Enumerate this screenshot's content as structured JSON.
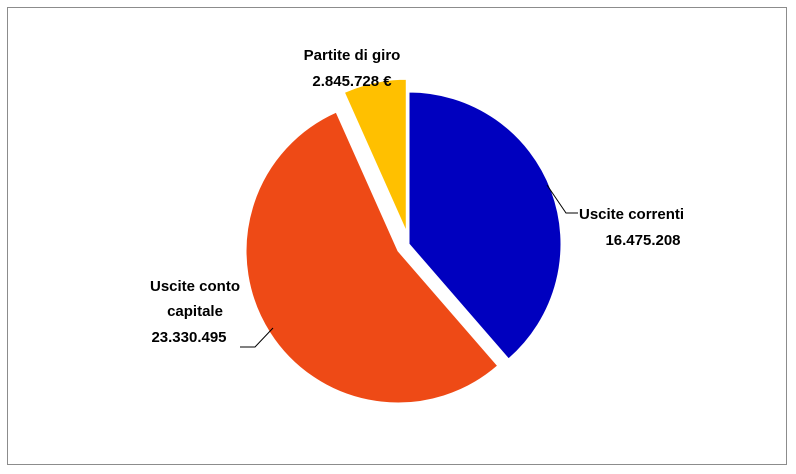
{
  "chart_data": {
    "type": "pie",
    "title": "",
    "slices": [
      {
        "name": "Uscite correnti",
        "value": 16475208,
        "value_label": "16.475.208",
        "color": "#0000BF",
        "exploded": false
      },
      {
        "name": "Uscite conto capitale",
        "value": 23330495,
        "value_label": "23.330.495",
        "color": "#EE4A16",
        "exploded": true
      },
      {
        "name": "Partite di giro",
        "value": 2845728,
        "value_label": "2.845.728 €",
        "color": "#FFC000",
        "exploded": true
      }
    ],
    "legend": "none",
    "data_labels": "outside with leader lines"
  }
}
